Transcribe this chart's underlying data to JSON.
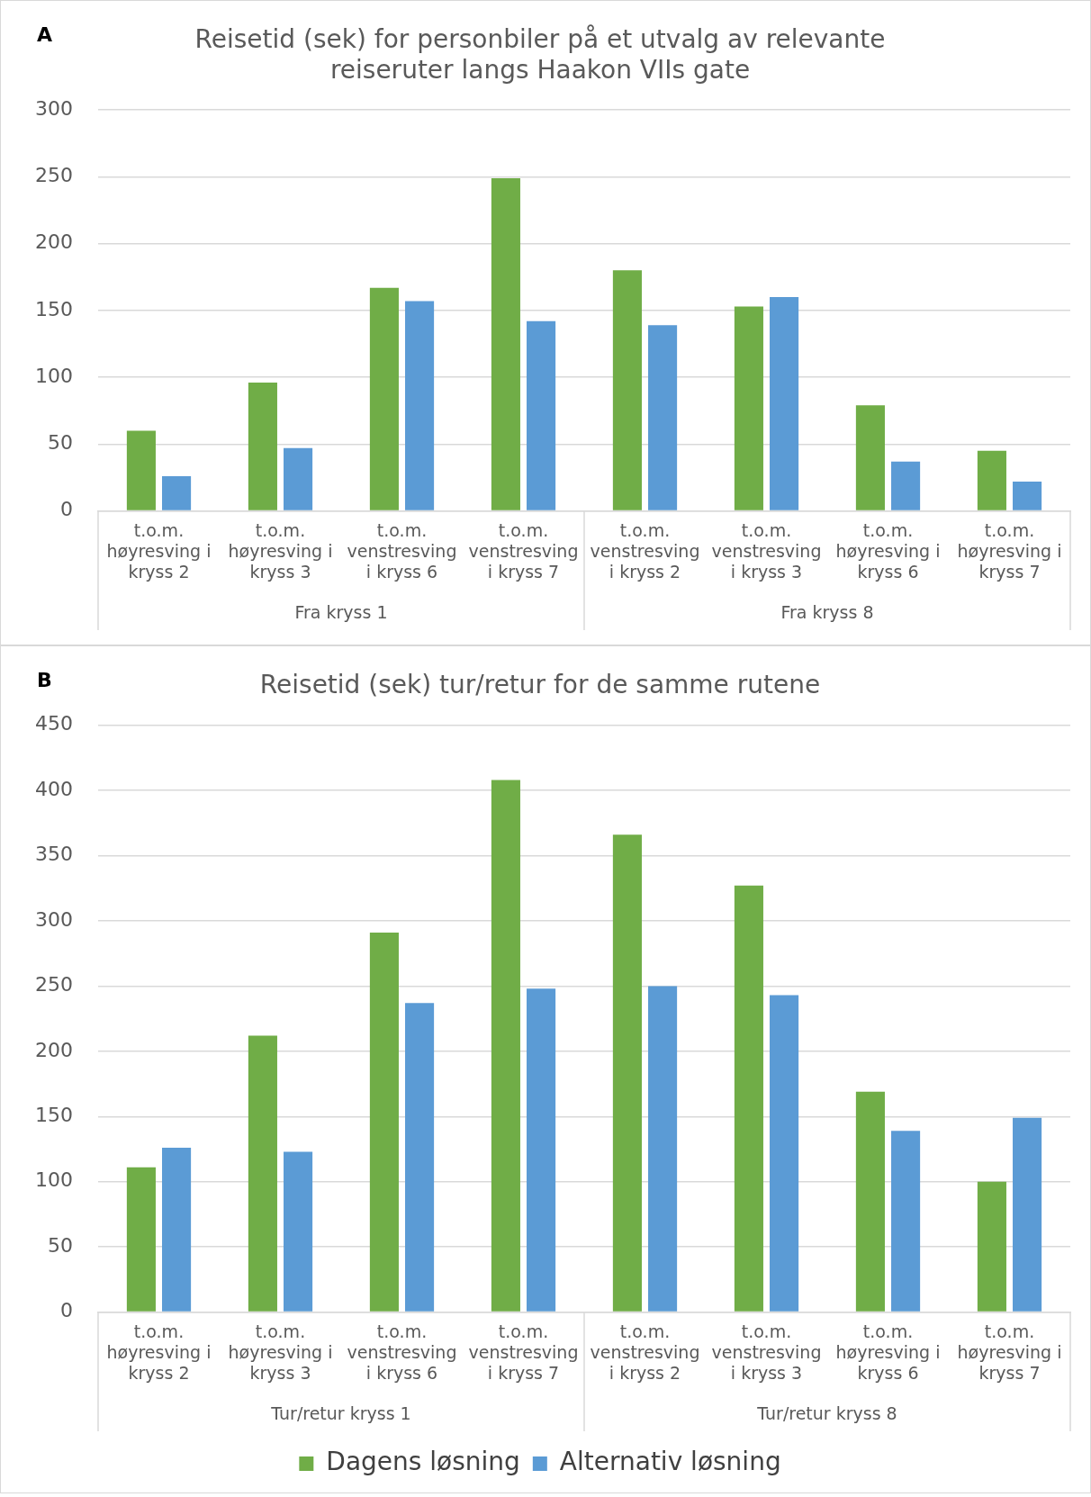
{
  "chart_data": [
    {
      "type": "bar",
      "title": "Reisetid (sek) for personbiler på et utvalg av relevante reiseruter langs Haakon VIIs gate",
      "categories": [
        "t.o.m. høyresving i kryss 2",
        "t.o.m. høyresving i kryss 3",
        "t.o.m. venstresving i kryss 6",
        "t.o.m. venstresving i kryss 7",
        "t.o.m. venstresving i kryss 2",
        "t.o.m. venstresving i kryss 3",
        "t.o.m. høyresving i kryss 6",
        "t.o.m. høyresving i kryss 7"
      ],
      "series": [
        {
          "color": "#70ad47",
          "values": [
            60,
            96,
            167,
            249,
            180,
            153,
            79,
            45
          ]
        },
        {
          "color": "#5b9bd5",
          "values": [
            26,
            47,
            157,
            142,
            139,
            160,
            37,
            22
          ]
        }
      ],
      "ylim": [
        0,
        300
      ],
      "yticks": [
        0,
        50,
        100,
        150,
        200,
        250,
        300
      ],
      "grid": "y",
      "legend": false,
      "annotations": [
        "A",
        "Fra kryss 1",
        "Fra kryss 8"
      ]
    },
    {
      "type": "bar",
      "title": "Reisetid (sek) tur/retur for de samme rutene",
      "categories": [
        "t.o.m. høyresving i kryss 2",
        "t.o.m. høyresving i kryss 3",
        "t.o.m. venstresving i kryss 6",
        "t.o.m. venstresving i kryss 7",
        "t.o.m. venstresving i kryss 2",
        "t.o.m. venstresving i kryss 3",
        "t.o.m. høyresving i kryss 6",
        "t.o.m. høyresving i kryss 7"
      ],
      "series": [
        {
          "name": "Dagens løsning",
          "color": "#70ad47",
          "values": [
            111,
            212,
            291,
            408,
            366,
            327,
            169,
            100
          ]
        },
        {
          "name": "Alternativ løsning",
          "color": "#5b9bd5",
          "values": [
            126,
            123,
            237,
            248,
            250,
            243,
            139,
            149
          ]
        }
      ],
      "ylim": [
        0,
        450
      ],
      "yticks": [
        0,
        50,
        100,
        150,
        200,
        250,
        300,
        350,
        400,
        450
      ],
      "grid": "y",
      "legend": "bottom",
      "annotations": [
        "B",
        "Tur/retur kryss 1",
        "Tur/retur kryss 8"
      ]
    }
  ]
}
